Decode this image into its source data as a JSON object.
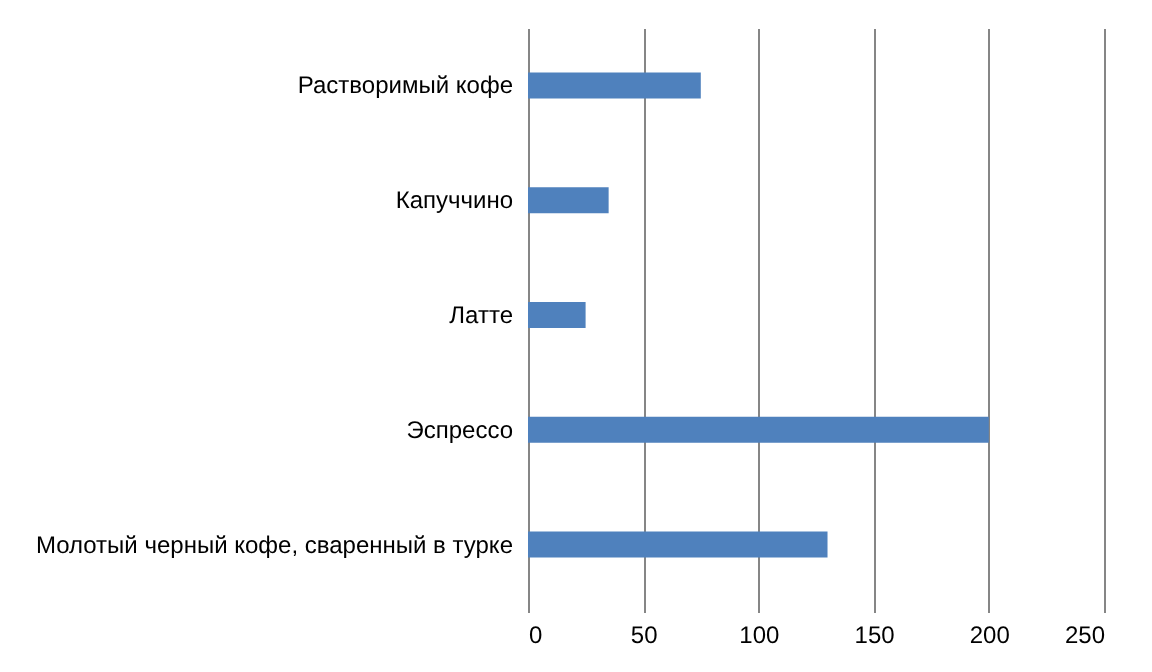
{
  "chart_data": {
    "type": "bar",
    "orientation": "horizontal",
    "categories": [
      "Растворимый кофе",
      "Капуччино",
      "Латте",
      "Эспрессо",
      "Молотый черный кофе, сваренный в турке"
    ],
    "values": [
      75,
      35,
      25,
      200,
      130
    ],
    "color": "#4f81bd",
    "xlim": [
      0,
      250
    ],
    "xticks": [
      0,
      50,
      100,
      150,
      200,
      250
    ],
    "grid": "x"
  }
}
